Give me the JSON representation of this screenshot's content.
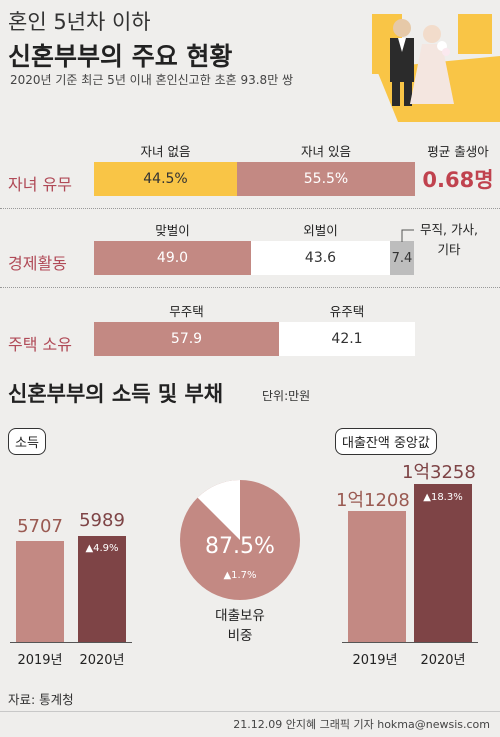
{
  "header": {
    "title_line1": "혼인 5년차 이하",
    "title_line2": "신혼부부의 주요 현황",
    "subtitle": "2020년 기준 최근 5년 이내 혼인신고한 초혼 93.8만 쌍"
  },
  "colors": {
    "salmon": "#c38983",
    "yellow": "#f9c546",
    "dark": "#7e4446",
    "gray": "#bdbdbd",
    "white": "#ffffff",
    "red": "#c0424e"
  },
  "status_chart": {
    "chart_data": {
      "type": "bar",
      "stacked": true,
      "unit": "%",
      "rows": [
        {
          "label": "자녀 유무",
          "segments": [
            {
              "name": "자녀 없음",
              "value": 44.5
            },
            {
              "name": "자녀 있음",
              "value": 55.5
            }
          ]
        },
        {
          "label": "경제활동",
          "segments": [
            {
              "name": "맞벌이",
              "value": 49.0
            },
            {
              "name": "외벌이",
              "value": 43.6
            },
            {
              "name": "무직, 가사, 기타",
              "value": 7.4
            }
          ]
        },
        {
          "label": "주택 소유",
          "segments": [
            {
              "name": "무주택",
              "value": 57.9
            },
            {
              "name": "유주택",
              "value": 42.1
            }
          ]
        }
      ]
    },
    "rows": [
      {
        "label": "자녀 유무",
        "seg_names": [
          "자녀 없음",
          "자녀 있음"
        ],
        "seg_labels": [
          "44.5%",
          "55.5%"
        ]
      },
      {
        "label": "경제활동",
        "seg_names": [
          "맞벌이",
          "외벌이",
          "무직, 가사,\n기타"
        ],
        "seg_labels": [
          "49.0",
          "43.6",
          "7.4"
        ]
      },
      {
        "label": "주택 소유",
        "seg_names": [
          "무주택",
          "유주택"
        ],
        "seg_labels": [
          "57.9",
          "42.1"
        ]
      }
    ],
    "avg_births": {
      "label": "평균 출생아",
      "value": "0.68명"
    }
  },
  "income_section": {
    "title": "신혼부부의 소득 및 부채",
    "unit": "단위:만원"
  },
  "income": {
    "label": "소득",
    "chart_data": {
      "type": "bar",
      "categories": [
        "2019년",
        "2020년"
      ],
      "values": [
        5707,
        5989
      ],
      "change": "▲4.9%"
    },
    "value_labels": [
      "5707",
      "5989"
    ],
    "years": [
      "2019년",
      "2020년"
    ],
    "change": "▲4.9%"
  },
  "loan_ratio": {
    "chart_data": {
      "type": "pie",
      "slices": [
        {
          "label": "대출보유",
          "value": 87.5
        },
        {
          "label": "",
          "value": 12.5
        }
      ]
    },
    "value_label": "87.5%",
    "change": "▲1.7%",
    "caption_line1": "대출보유",
    "caption_line2": "비중"
  },
  "loan_median": {
    "label": "대출잔액 중앙값",
    "chart_data": {
      "type": "bar",
      "categories": [
        "2019년",
        "2020년"
      ],
      "values": [
        11208,
        13258
      ],
      "change": "▲18.3%"
    },
    "value_labels": [
      "1억1208",
      "1억3258"
    ],
    "years": [
      "2019년",
      "2020년"
    ],
    "change": "▲18.3%"
  },
  "source": "자료: 통계청",
  "credit": "21.12.09 안지혜 그래픽 기자 hokma@newsis.com"
}
